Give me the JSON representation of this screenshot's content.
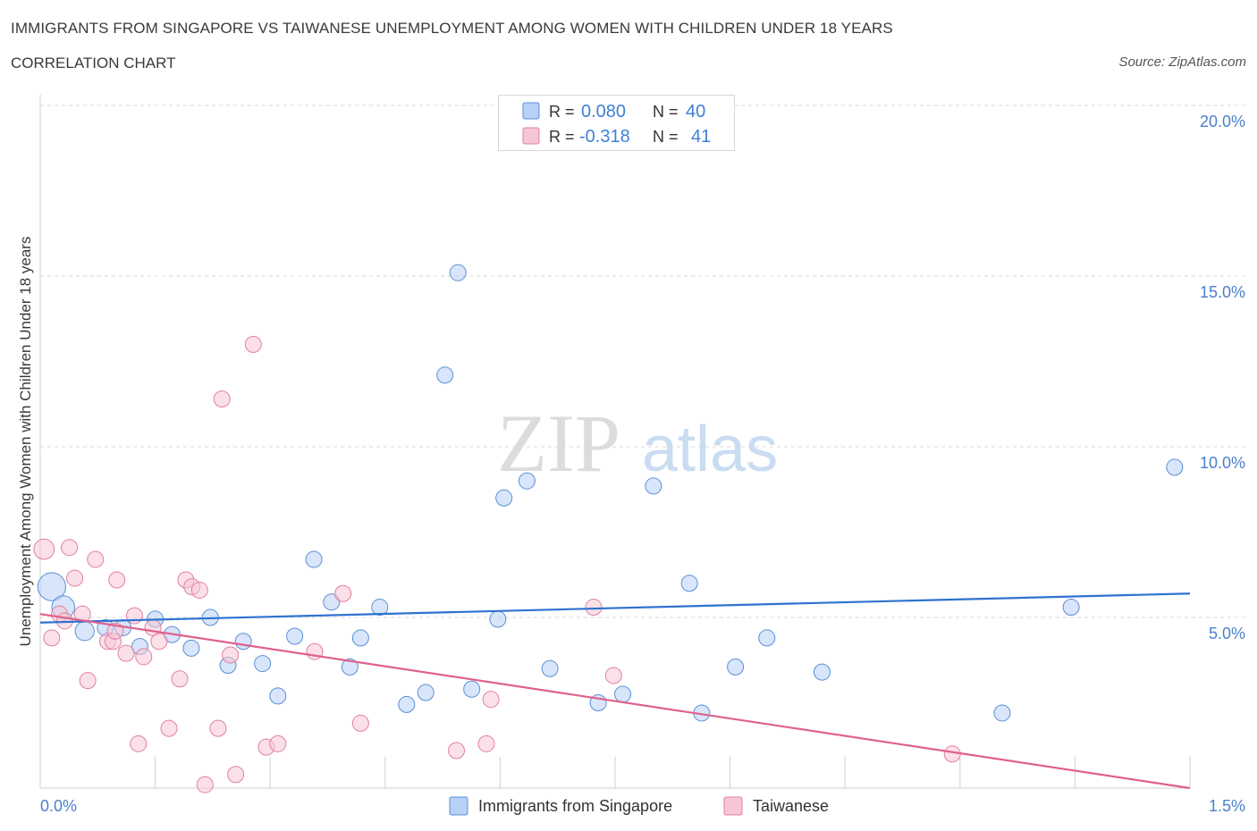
{
  "header": {
    "title": "IMMIGRANTS FROM SINGAPORE VS TAIWANESE UNEMPLOYMENT AMONG WOMEN WITH CHILDREN UNDER 18 YEARS",
    "subtitle": "CORRELATION CHART",
    "source": "Source: ZipAtlas.com"
  },
  "watermark": {
    "zip": "ZIP",
    "atlas": "atlas"
  },
  "colors": {
    "blue": "#5b8fd6",
    "blue_fill": "#b8d0f5",
    "blue_line": "#2f72d0",
    "pink": "#e17fa0",
    "pink_fill": "#f7c6d5",
    "pink_line": "#e0608c",
    "axis_label": "#4a7fcc"
  },
  "stats_legend": {
    "rows": [
      {
        "r_label": "R =",
        "r_value": "0.080",
        "n_label": "N =",
        "n_value": "40"
      },
      {
        "r_label": "R =",
        "r_value": "-0.318",
        "n_label": "N =",
        "n_value": "41"
      }
    ]
  },
  "chart_data": {
    "type": "scatter",
    "title": "IMMIGRANTS FROM SINGAPORE VS TAIWANESE UNEMPLOYMENT AMONG WOMEN WITH CHILDREN UNDER 18 YEARS",
    "ylabel": "Unemployment Among Women with Children Under 18 years",
    "xlabel": "",
    "xlim": [
      0,
      1.5
    ],
    "ylim": [
      0,
      20
    ],
    "x_tick_labels": [
      "0.0%",
      "1.5%"
    ],
    "y_ticks": [
      5,
      10,
      15,
      20
    ],
    "y_tick_labels": [
      "5.0%",
      "10.0%",
      "15.0%",
      "20.0%"
    ],
    "grid": "horizontal dashed",
    "legend": "bottom-center",
    "series": [
      {
        "name": "Immigrants from Singapore",
        "color": "#5b8fd6",
        "trend": {
          "x": [
            0,
            1.5
          ],
          "y": [
            4.85,
            5.7
          ]
        },
        "points": [
          {
            "x": 0.015,
            "y": 5.9,
            "s": 3
          },
          {
            "x": 0.03,
            "y": 5.3,
            "s": 2
          },
          {
            "x": 0.058,
            "y": 4.6,
            "s": 1.4
          },
          {
            "x": 0.085,
            "y": 4.7,
            "s": 1
          },
          {
            "x": 0.108,
            "y": 4.7,
            "s": 1
          },
          {
            "x": 0.13,
            "y": 4.15,
            "s": 1
          },
          {
            "x": 0.15,
            "y": 4.95,
            "s": 1
          },
          {
            "x": 0.172,
            "y": 4.5,
            "s": 1
          },
          {
            "x": 0.197,
            "y": 4.1,
            "s": 1
          },
          {
            "x": 0.222,
            "y": 5.0,
            "s": 1
          },
          {
            "x": 0.245,
            "y": 3.6,
            "s": 1
          },
          {
            "x": 0.265,
            "y": 4.3,
            "s": 1
          },
          {
            "x": 0.29,
            "y": 3.65,
            "s": 1
          },
          {
            "x": 0.31,
            "y": 2.7,
            "s": 1
          },
          {
            "x": 0.332,
            "y": 4.45,
            "s": 1
          },
          {
            "x": 0.357,
            "y": 6.7,
            "s": 1
          },
          {
            "x": 0.38,
            "y": 5.45,
            "s": 1
          },
          {
            "x": 0.404,
            "y": 3.55,
            "s": 1
          },
          {
            "x": 0.418,
            "y": 4.4,
            "s": 1
          },
          {
            "x": 0.443,
            "y": 5.3,
            "s": 1
          },
          {
            "x": 0.478,
            "y": 2.45,
            "s": 1
          },
          {
            "x": 0.503,
            "y": 2.8,
            "s": 1
          },
          {
            "x": 0.528,
            "y": 12.1,
            "s": 1
          },
          {
            "x": 0.545,
            "y": 15.1,
            "s": 1
          },
          {
            "x": 0.563,
            "y": 2.9,
            "s": 1
          },
          {
            "x": 0.597,
            "y": 4.95,
            "s": 1
          },
          {
            "x": 0.605,
            "y": 8.5,
            "s": 1
          },
          {
            "x": 0.635,
            "y": 9.0,
            "s": 1
          },
          {
            "x": 0.665,
            "y": 3.5,
            "s": 1
          },
          {
            "x": 0.728,
            "y": 2.5,
            "s": 1
          },
          {
            "x": 0.76,
            "y": 2.75,
            "s": 1
          },
          {
            "x": 0.8,
            "y": 8.85,
            "s": 1
          },
          {
            "x": 0.847,
            "y": 6.0,
            "s": 1
          },
          {
            "x": 0.863,
            "y": 2.2,
            "s": 1
          },
          {
            "x": 0.907,
            "y": 3.55,
            "s": 1
          },
          {
            "x": 0.948,
            "y": 4.4,
            "s": 1
          },
          {
            "x": 1.02,
            "y": 3.4,
            "s": 1
          },
          {
            "x": 1.255,
            "y": 2.2,
            "s": 1
          },
          {
            "x": 1.345,
            "y": 5.3,
            "s": 1
          },
          {
            "x": 1.48,
            "y": 9.4,
            "s": 1
          }
        ]
      },
      {
        "name": "Taiwanese",
        "color": "#e17fa0",
        "trend": {
          "x": [
            0,
            1.5
          ],
          "y": [
            5.1,
            0.0
          ]
        },
        "points": [
          {
            "x": 0.005,
            "y": 7.0,
            "s": 1.6
          },
          {
            "x": 0.015,
            "y": 4.4,
            "s": 1
          },
          {
            "x": 0.025,
            "y": 5.1,
            "s": 1
          },
          {
            "x": 0.032,
            "y": 4.9,
            "s": 1
          },
          {
            "x": 0.038,
            "y": 7.05,
            "s": 1
          },
          {
            "x": 0.045,
            "y": 6.15,
            "s": 1
          },
          {
            "x": 0.055,
            "y": 5.1,
            "s": 1
          },
          {
            "x": 0.062,
            "y": 3.15,
            "s": 1
          },
          {
            "x": 0.072,
            "y": 6.7,
            "s": 1
          },
          {
            "x": 0.088,
            "y": 4.3,
            "s": 1
          },
          {
            "x": 0.095,
            "y": 4.3,
            "s": 1
          },
          {
            "x": 0.1,
            "y": 6.1,
            "s": 1
          },
          {
            "x": 0.112,
            "y": 3.95,
            "s": 1
          },
          {
            "x": 0.123,
            "y": 5.05,
            "s": 1
          },
          {
            "x": 0.128,
            "y": 1.3,
            "s": 1
          },
          {
            "x": 0.135,
            "y": 3.85,
            "s": 1
          },
          {
            "x": 0.147,
            "y": 4.7,
            "s": 1
          },
          {
            "x": 0.155,
            "y": 4.3,
            "s": 1
          },
          {
            "x": 0.168,
            "y": 1.75,
            "s": 1
          },
          {
            "x": 0.182,
            "y": 3.2,
            "s": 1
          },
          {
            "x": 0.19,
            "y": 6.1,
            "s": 1
          },
          {
            "x": 0.198,
            "y": 5.9,
            "s": 1
          },
          {
            "x": 0.208,
            "y": 5.8,
            "s": 1
          },
          {
            "x": 0.215,
            "y": 0.1,
            "s": 1
          },
          {
            "x": 0.232,
            "y": 1.75,
            "s": 1
          },
          {
            "x": 0.237,
            "y": 11.4,
            "s": 1
          },
          {
            "x": 0.248,
            "y": 3.9,
            "s": 1
          },
          {
            "x": 0.255,
            "y": 0.4,
            "s": 1
          },
          {
            "x": 0.278,
            "y": 13.0,
            "s": 1
          },
          {
            "x": 0.295,
            "y": 1.2,
            "s": 1
          },
          {
            "x": 0.31,
            "y": 1.3,
            "s": 1
          },
          {
            "x": 0.358,
            "y": 4.0,
            "s": 1
          },
          {
            "x": 0.395,
            "y": 5.7,
            "s": 1
          },
          {
            "x": 0.418,
            "y": 1.9,
            "s": 1
          },
          {
            "x": 0.543,
            "y": 1.1,
            "s": 1
          },
          {
            "x": 0.582,
            "y": 1.3,
            "s": 1
          },
          {
            "x": 0.588,
            "y": 2.6,
            "s": 1
          },
          {
            "x": 0.722,
            "y": 5.3,
            "s": 1
          },
          {
            "x": 0.748,
            "y": 3.3,
            "s": 1
          },
          {
            "x": 1.19,
            "y": 1.0,
            "s": 1
          },
          {
            "x": 0.098,
            "y": 4.6,
            "s": 1
          }
        ]
      }
    ]
  }
}
